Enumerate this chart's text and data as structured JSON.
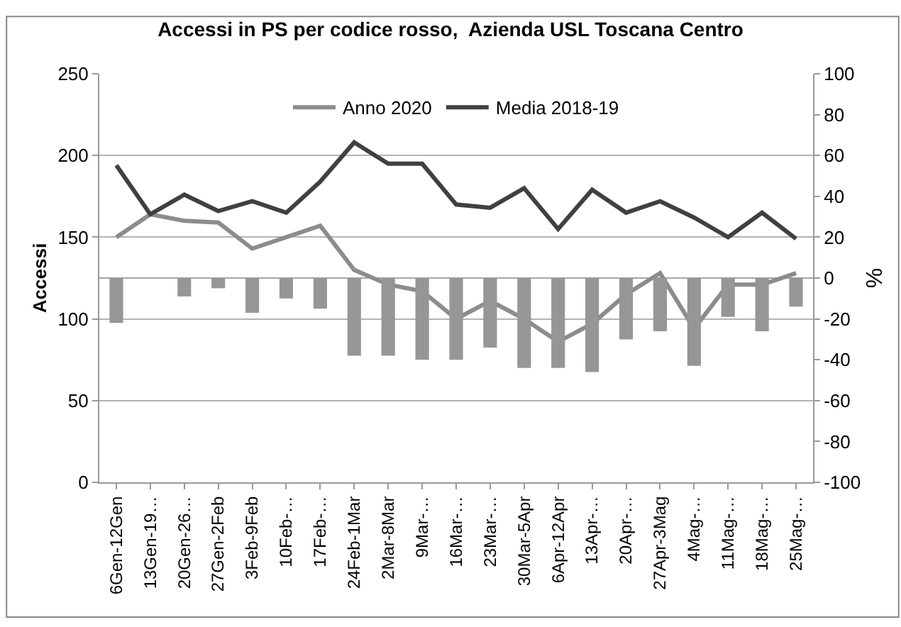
{
  "chart_data": {
    "type": "line",
    "title": "Accessi in PS per codice rosso,  Azienda USL Toscana Centro",
    "ylabel": "Accessi",
    "y2label": "%",
    "categories": [
      "6Gen-12Gen",
      "13Gen-19…",
      "20Gen-26…",
      "27Gen-2Feb",
      "3Feb-9Feb",
      "10Feb-…",
      "17Feb-…",
      "24Feb-1Mar",
      "2Mar-8Mar",
      "9Mar-…",
      "16Mar-…",
      "23Mar-…",
      "30Mar-5Apr",
      "6Apr-12Apr",
      "13Apr-…",
      "20Apr-…",
      "27Apr-3Mag",
      "4Mag-…",
      "11Mag-…",
      "18Mag-…",
      "25Mag-…"
    ],
    "series": [
      {
        "type": "bar",
        "axis": "y2",
        "color": "#969696",
        "values": [
          -22,
          0,
          -9,
          -5,
          -17,
          -10,
          -15,
          -38,
          -38,
          -40,
          -40,
          -34,
          -44,
          -44,
          -46,
          -30,
          -26,
          -43,
          -19,
          -26,
          -14
        ]
      },
      {
        "name": "Anno 2020",
        "color": "#8c8c8c",
        "values": [
          150,
          164,
          160,
          159,
          143,
          150,
          157,
          130,
          121,
          117,
          100,
          111,
          100,
          86,
          97,
          115,
          128,
          94,
          121,
          121,
          128
        ]
      },
      {
        "name": "Media 2018-19",
        "color": "#404040",
        "values": [
          194,
          164,
          176,
          166,
          172,
          165,
          184,
          208,
          195,
          195,
          170,
          168,
          180,
          155,
          179,
          165,
          172,
          162,
          150,
          165,
          149
        ]
      }
    ],
    "ylim": [
      0,
      250
    ],
    "yticks": [
      0,
      50,
      100,
      150,
      200,
      250
    ],
    "y2lim": [
      -100,
      100
    ],
    "y2ticks": [
      -100,
      -80,
      -60,
      -40,
      -20,
      0,
      20,
      40,
      60,
      80,
      100
    ],
    "ref_lines": [
      {
        "axis": "y2",
        "value": 0,
        "color": "#a6a6a6"
      }
    ],
    "grid": "y",
    "legend": "top",
    "marker": "none",
    "line_style": "solid"
  }
}
